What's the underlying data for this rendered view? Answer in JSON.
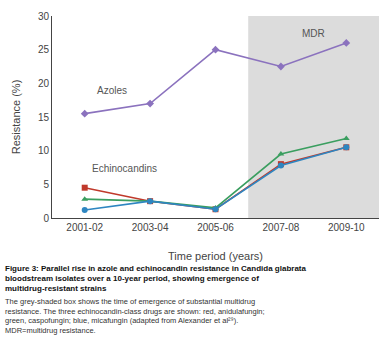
{
  "chart_data": {
    "type": "line",
    "title": "Figure 3: Parallel rise in azole and echinocandin resistance in Candida glabrata\nbloodstream isolates over a 10-year period, showing emergence of\nmultidrug-resistant strains",
    "caption": "The grey-shaded box shows the time of emergence of substantial multidrug\nresistance. The three echinocandin-class drugs are shown: red, anidulafungin;\ngreen, caspofungin; blue, micafungin (adapted from Alexander et al²⁹).\nMDR=multidrug resistance.",
    "xlabel": "Time period (years)",
    "ylabel": "Resistance (%)",
    "categories": [
      "2001-02",
      "2003-04",
      "2005-06",
      "2007-08",
      "2009-10"
    ],
    "series": [
      {
        "color": "#8B72BE",
        "marker": "diamond",
        "values": [
          15.5,
          17.0,
          25.0,
          22.5,
          26.0
        ]
      },
      {
        "color": "#C0392B",
        "marker": "square",
        "values": [
          4.5,
          2.5,
          1.3,
          8.0,
          10.5
        ]
      },
      {
        "color": "#3A9E5F",
        "marker": "triangle-up",
        "values": [
          2.8,
          2.5,
          1.5,
          9.5,
          11.8
        ]
      },
      {
        "color": "#2E86C1",
        "marker": "circle",
        "values": [
          1.2,
          2.5,
          1.3,
          7.8,
          10.5
        ]
      }
    ],
    "xlim": [
      -0.5,
      4.5
    ],
    "ylim": [
      0,
      30
    ],
    "yticks": [
      0,
      5,
      10,
      15,
      20,
      25,
      30
    ],
    "grid": false,
    "shaded_region": {
      "x": [
        2.5,
        4.5
      ],
      "color": "#DCDCDC"
    },
    "annotations": [
      {
        "text": "MDR",
        "x": 3.5,
        "y": 28.5
      },
      {
        "text": "Azoles",
        "x": 0.15,
        "y": 17.8
      },
      {
        "text": "Echinocandins",
        "x": 0.08,
        "y": 6.3
      }
    ]
  }
}
